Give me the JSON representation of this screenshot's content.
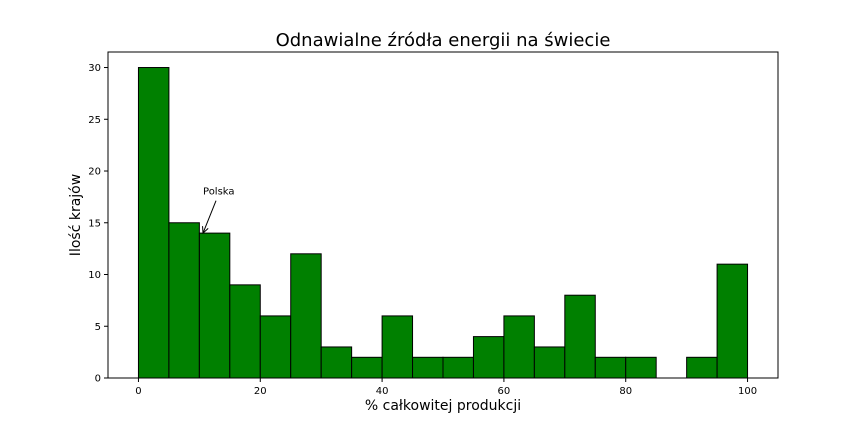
{
  "chart_data": {
    "type": "bar",
    "title": "Odnawialne źródła energii na świecie",
    "xlabel": "% całkowitej produkcji",
    "ylabel": "Ilość krajów",
    "bin_width": 5,
    "bins": [
      {
        "x0": 0,
        "x1": 5,
        "count": 30
      },
      {
        "x0": 5,
        "x1": 10,
        "count": 15
      },
      {
        "x0": 10,
        "x1": 15,
        "count": 14
      },
      {
        "x0": 15,
        "x1": 20,
        "count": 9
      },
      {
        "x0": 20,
        "x1": 25,
        "count": 6
      },
      {
        "x0": 25,
        "x1": 30,
        "count": 12
      },
      {
        "x0": 30,
        "x1": 35,
        "count": 3
      },
      {
        "x0": 35,
        "x1": 40,
        "count": 2
      },
      {
        "x0": 40,
        "x1": 45,
        "count": 6
      },
      {
        "x0": 45,
        "x1": 50,
        "count": 2
      },
      {
        "x0": 50,
        "x1": 55,
        "count": 2
      },
      {
        "x0": 55,
        "x1": 60,
        "count": 4
      },
      {
        "x0": 60,
        "x1": 65,
        "count": 6
      },
      {
        "x0": 65,
        "x1": 70,
        "count": 3
      },
      {
        "x0": 70,
        "x1": 75,
        "count": 8
      },
      {
        "x0": 75,
        "x1": 80,
        "count": 2
      },
      {
        "x0": 80,
        "x1": 85,
        "count": 2
      },
      {
        "x0": 85,
        "x1": 90,
        "count": 0
      },
      {
        "x0": 90,
        "x1": 95,
        "count": 2
      },
      {
        "x0": 95,
        "x1": 100,
        "count": 11
      }
    ],
    "xlim": [
      -5,
      105
    ],
    "ylim": [
      0,
      31.5
    ],
    "xticks": [
      0,
      20,
      40,
      60,
      80,
      100
    ],
    "yticks": [
      0,
      5,
      10,
      15,
      20,
      25,
      30
    ],
    "bar_color": "#008000",
    "edge_color": "#000000",
    "grid": false,
    "annotation": {
      "text": "Polska",
      "point": {
        "x": 10.6,
        "y": 14
      },
      "text_pos": {
        "x": 10.6,
        "y": 18
      }
    }
  }
}
